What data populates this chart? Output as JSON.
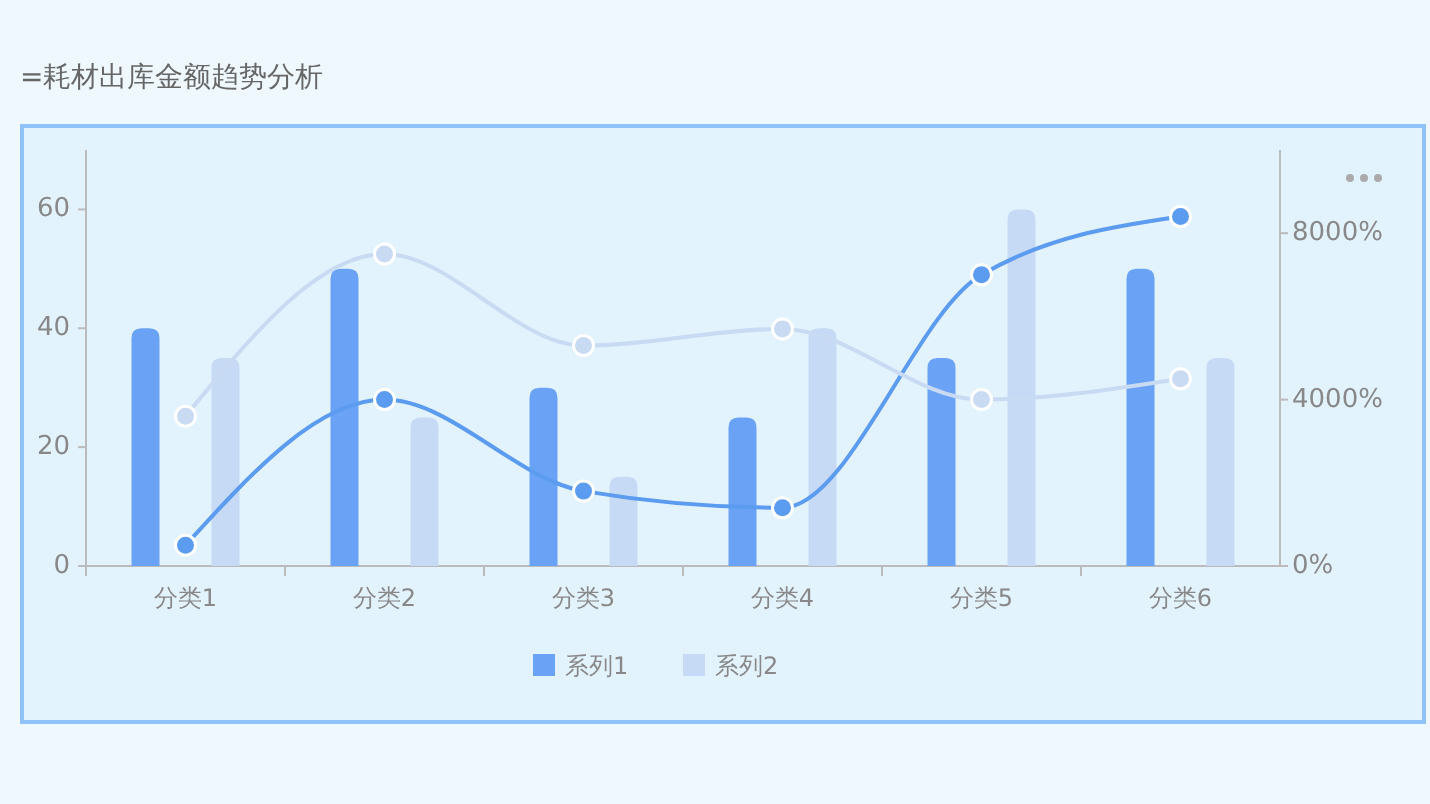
{
  "chart_data": {
    "type": "bar",
    "title": "=耗材出库金额趋势分析",
    "categories": [
      "分类1",
      "分类2",
      "分类3",
      "分类4",
      "分类5",
      "分类6"
    ],
    "series": [
      {
        "name": "系列1",
        "color": "#6aa3f5",
        "values": [
          40,
          50,
          30,
          25,
          35,
          50
        ]
      },
      {
        "name": "系列2",
        "color": "#c6d9f5",
        "values": [
          35,
          25,
          15,
          40,
          60,
          35
        ]
      },
      {
        "type": "line",
        "axis": "y2",
        "color": "#5b9bf0",
        "values": [
          500,
          4000,
          1800,
          1400,
          7000,
          8400
        ]
      },
      {
        "type": "line",
        "axis": "y2",
        "color": "#c9dbf3",
        "values": [
          3600,
          7500,
          5300,
          5700,
          4000,
          4500
        ]
      }
    ],
    "ylim": [
      0,
      70
    ],
    "yticks": [
      0,
      20,
      40,
      60
    ],
    "y2lim": [
      0,
      10000
    ],
    "y2ticks": [
      {
        "value": 0,
        "label": "0%"
      },
      {
        "value": 4000,
        "label": "4000%"
      },
      {
        "value": 8000,
        "label": "8000%"
      }
    ],
    "legend": "bottom",
    "marker": "circle",
    "line_style": "solid",
    "grid": false
  }
}
